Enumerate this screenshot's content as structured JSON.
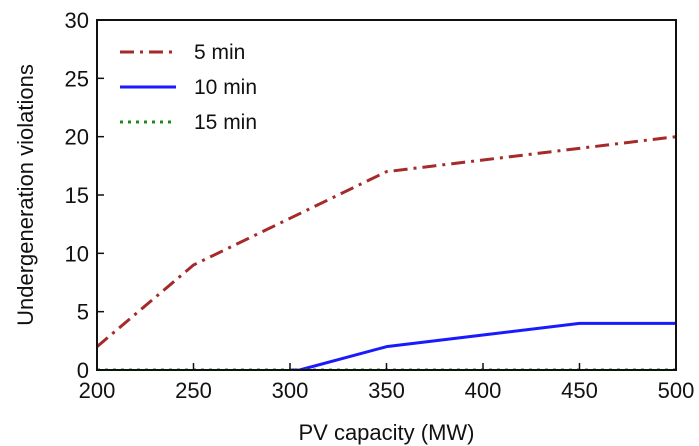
{
  "chart_data": {
    "type": "line",
    "title": "",
    "xlabel": "PV capacity (MW)",
    "ylabel": "Undergeneration violations",
    "xlim": [
      200,
      500
    ],
    "ylim": [
      0,
      30
    ],
    "xticks": [
      200,
      250,
      300,
      350,
      400,
      450,
      500
    ],
    "yticks": [
      0,
      5,
      10,
      15,
      20,
      25,
      30
    ],
    "grid": false,
    "legend_position": "top-left",
    "series": [
      {
        "name": "5 min",
        "color": "#a52a2a",
        "dash": "dash-dot",
        "points": [
          [
            200,
            2
          ],
          [
            250,
            9
          ],
          [
            300,
            13
          ],
          [
            350,
            17
          ],
          [
            400,
            18
          ],
          [
            450,
            19
          ],
          [
            500,
            20
          ]
        ]
      },
      {
        "name": "10 min",
        "color": "#1a1aff",
        "dash": "solid",
        "points": [
          [
            300,
            0
          ],
          [
            305,
            0
          ],
          [
            350,
            2
          ],
          [
            400,
            3
          ],
          [
            450,
            4
          ],
          [
            500,
            4
          ]
        ]
      },
      {
        "name": "15 min",
        "color": "#1a8a1a",
        "dash": "dotted",
        "points": [
          [
            200,
            0
          ],
          [
            250,
            0
          ],
          [
            300,
            0
          ],
          [
            350,
            0
          ],
          [
            400,
            0
          ],
          [
            450,
            0
          ],
          [
            500,
            0
          ]
        ]
      }
    ]
  }
}
